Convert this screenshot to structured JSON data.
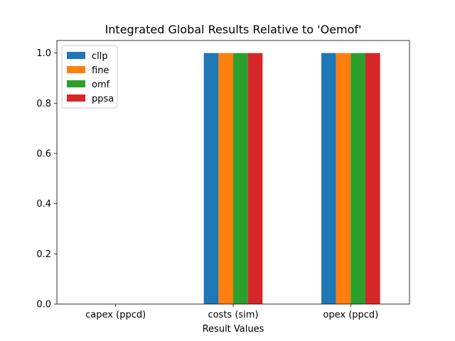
{
  "chart_data": {
    "type": "bar",
    "title": "Integrated Global Results Relative to 'Oemof'",
    "xlabel": "Result Values",
    "ylabel": "",
    "categories": [
      "capex (ppcd)",
      "costs (sim)",
      "opex (ppcd)"
    ],
    "series": [
      {
        "name": "cllp",
        "color": "#1f77b4",
        "values": [
          0,
          1.0,
          1.0
        ]
      },
      {
        "name": "fine",
        "color": "#ff7f0e",
        "values": [
          0,
          1.0,
          1.0
        ]
      },
      {
        "name": "omf",
        "color": "#2ca02c",
        "values": [
          0,
          1.0,
          1.0
        ]
      },
      {
        "name": "ppsa",
        "color": "#d62728",
        "values": [
          0,
          1.0,
          1.0
        ]
      }
    ],
    "ylim": [
      0,
      1.05
    ],
    "yticks": [
      "0.0",
      "0.2",
      "0.4",
      "0.6",
      "0.8",
      "1.0"
    ],
    "grid": false,
    "legend_position": "top-left"
  }
}
